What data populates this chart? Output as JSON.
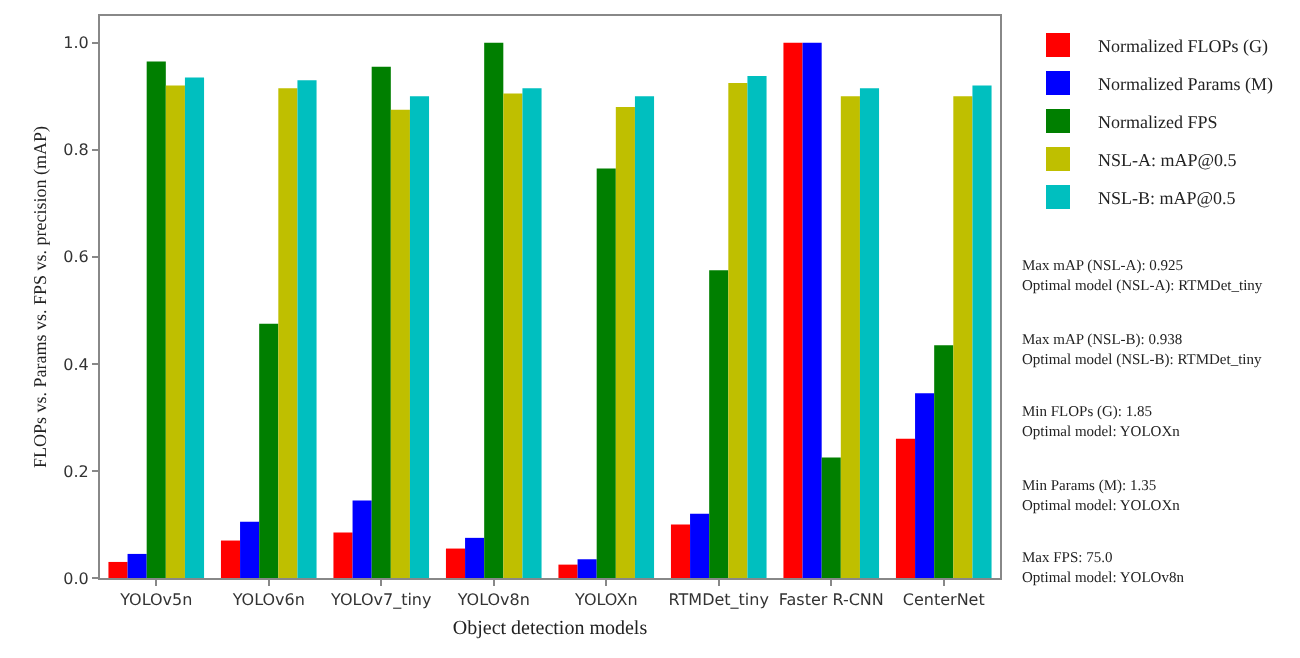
{
  "chart_data": {
    "type": "bar",
    "xlabel": "Object detection models",
    "ylabel": "FLOPs vs. Params vs. FPS vs. precision (mAP)",
    "categories": [
      "YOLOv5n",
      "YOLOv6n",
      "YOLOv7_tiny",
      "YOLOv8n",
      "YOLOXn",
      "RTMDet_tiny",
      "Faster R-CNN",
      "CenterNet"
    ],
    "series": [
      {
        "name": "Normalized FLOPs (G)",
        "color": "#ff0000",
        "values": [
          0.03,
          0.07,
          0.085,
          0.055,
          0.025,
          0.1,
          1.0,
          0.26
        ]
      },
      {
        "name": "Normalized Params (M)",
        "color": "#0000ff",
        "values": [
          0.045,
          0.105,
          0.145,
          0.075,
          0.035,
          0.12,
          1.0,
          0.345
        ]
      },
      {
        "name": "Normalized FPS",
        "color": "#007f00",
        "values": [
          0.965,
          0.475,
          0.955,
          1.0,
          0.765,
          0.575,
          0.225,
          0.435
        ]
      },
      {
        "name": "NSL-A: mAP@0.5",
        "color": "#bfbf00",
        "values": [
          0.92,
          0.915,
          0.875,
          0.905,
          0.88,
          0.925,
          0.9,
          0.9
        ]
      },
      {
        "name": "NSL-B: mAP@0.5",
        "color": "#00bfbf",
        "values": [
          0.935,
          0.93,
          0.9,
          0.915,
          0.9,
          0.938,
          0.915,
          0.92
        ]
      }
    ],
    "ylim": [
      0,
      1.05
    ],
    "yticks": [
      {
        "value": 0,
        "label": "0.0"
      },
      0.2,
      0.4,
      0.6,
      0.8,
      {
        "value": 1,
        "label": "1.0"
      }
    ],
    "grid": false,
    "legend": "top right",
    "annotations": [
      "Max mAP (NSL-A): 0.925\nOptimal model (NSL-A): RTMDet_tiny",
      "Max mAP (NSL-B): 0.938\nOptimal model (NSL-B): RTMDet_tiny",
      "Min FLOPs (G): 1.85\nOptimal model: YOLOXn",
      "Min Params (M): 1.35\nOptimal model: YOLOXn",
      "Max FPS: 75.0\nOptimal model: YOLOv8n"
    ]
  }
}
